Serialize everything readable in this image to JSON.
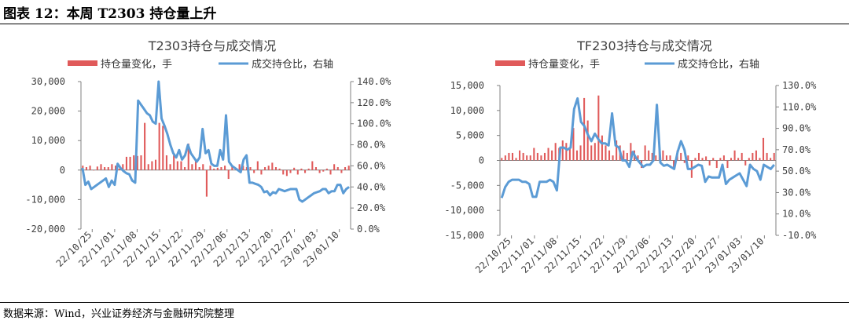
{
  "figure": {
    "title": "图表 12：本周 T2303 持仓量上升",
    "source": "数据来源：Wind，兴业证券经济与金融研究院整理"
  },
  "colors": {
    "bar": "#e05a5a",
    "line": "#5b9bd5",
    "axis": "#808080"
  },
  "chart_data": [
    {
      "type": "bar+line",
      "title": "T2303持仓与成交情况",
      "legend": [
        "持仓量变化，手",
        "成交持仓比，右轴"
      ],
      "left_axis": {
        "ylim": [
          -20000,
          30000
        ],
        "ticks": [
          -20000,
          -10000,
          0,
          10000,
          20000,
          30000
        ],
        "tick_labels": [
          "-20,000",
          "-10,000",
          "0",
          "10,000",
          "20,000",
          "30,000"
        ]
      },
      "right_axis": {
        "ylim": [
          0,
          140
        ],
        "ticks": [
          0,
          20,
          40,
          60,
          80,
          100,
          120,
          140
        ],
        "tick_labels": [
          "0.0%",
          "20.0%",
          "40.0%",
          "60.0%",
          "80.0%",
          "100.0%",
          "120.0%",
          "140.0%"
        ]
      },
      "x_tick_labels": [
        "22/10/25",
        "22/11/01",
        "22/11/08",
        "22/11/15",
        "22/11/22",
        "22/11/29",
        "22/12/06",
        "22/12/13",
        "22/12/20",
        "22/12/27",
        "23/01/03",
        "23/01/10"
      ],
      "series": [
        {
          "name": "持仓量变化，手",
          "kind": "bar",
          "values": [
            1500,
            1000,
            1500,
            0,
            1200,
            2000,
            1000,
            1000,
            2000,
            1500,
            500,
            2000,
            4500,
            4500,
            5000,
            4800,
            5000,
            16000,
            2000,
            3000,
            3500,
            16000,
            15000,
            5000,
            2000,
            5000,
            3000,
            3000,
            1000,
            9000,
            2000,
            3000,
            1000,
            2000,
            -9000,
            1500,
            500,
            800,
            1000,
            1500,
            -3000,
            1500,
            500,
            2000,
            1500,
            1000,
            1000,
            -1000,
            3000,
            -1500,
            1000,
            1500,
            2500,
            1000,
            500,
            -1500,
            -2000,
            -1000,
            800,
            -1500,
            500,
            -1000,
            500,
            3000,
            1000,
            -1000,
            -500,
            500,
            -1500,
            2000,
            1000,
            -1000,
            1000,
            1500
          ],
          "values_positions": "x values are day indices from 0 to 73, evenly spread over the 12 weekly tick labels"
        },
        {
          "name": "成交持仓比，右轴",
          "kind": "line",
          "values": [
            58,
            42,
            45,
            38,
            40,
            42,
            44,
            46,
            48,
            40,
            46,
            42,
            62,
            58,
            55,
            53,
            52,
            46,
            44,
            122,
            118,
            114,
            110,
            108,
            102,
            100,
            140,
            105,
            98,
            90,
            80,
            72,
            68,
            75,
            66,
            70,
            80,
            72,
            68,
            64,
            68,
            95,
            72,
            75,
            62,
            60,
            60,
            75,
            66,
            108,
            64,
            60,
            58,
            56,
            54,
            66,
            70,
            44,
            44,
            43,
            42,
            40,
            35,
            36,
            32,
            35,
            34,
            38,
            37,
            36,
            37,
            38,
            38,
            38,
            28,
            26,
            28,
            30,
            32,
            34,
            35,
            36,
            38,
            38,
            34,
            36,
            36,
            42,
            42,
            34,
            38,
            40
          ]
        }
      ]
    },
    {
      "type": "bar+line",
      "title": "TF2303持仓与成交情况",
      "legend": [
        "持仓量变化，手",
        "成交持仓比，右轴"
      ],
      "left_axis": {
        "ylim": [
          -15000,
          15000
        ],
        "ticks": [
          -15000,
          -10000,
          -5000,
          0,
          5000,
          10000,
          15000
        ],
        "tick_labels": [
          "-15,000",
          "-10,000",
          "-5,000",
          "0",
          "5,000",
          "10,000",
          "15,000"
        ]
      },
      "right_axis": {
        "ylim": [
          -10,
          130
        ],
        "ticks": [
          -10,
          10,
          30,
          50,
          70,
          90,
          110,
          130
        ],
        "tick_labels": [
          "-10.0%",
          "10.0%",
          "30.0%",
          "50.0%",
          "70.0%",
          "90.0%",
          "110.0%",
          "130.0%"
        ]
      },
      "x_tick_labels": [
        "22/10/25",
        "22/11/01",
        "22/11/08",
        "22/11/15",
        "22/11/22",
        "22/11/29",
        "22/12/06",
        "22/12/13",
        "22/12/20",
        "22/12/27",
        "23/01/03",
        "23/01/10"
      ],
      "series": [
        {
          "name": "持仓量变化，手",
          "kind": "bar",
          "values": [
            500,
            1000,
            1500,
            1500,
            500,
            2000,
            1500,
            1000,
            1000,
            2500,
            1500,
            1000,
            1500,
            2500,
            2000,
            3500,
            2500,
            4000,
            3500,
            2500,
            6500,
            2000,
            3000,
            12500,
            8000,
            3000,
            3500,
            13000,
            5000,
            3000,
            2000,
            1000,
            4000,
            3000,
            2000,
            1500,
            3500,
            2000,
            1000,
            -1500,
            3000,
            2000,
            1500,
            1000,
            2500,
            2000,
            1000,
            1000,
            -1500,
            2000,
            1500,
            -500,
            1000,
            -3500,
            500,
            1500,
            500,
            800,
            -1000,
            500,
            -1500,
            500,
            1000,
            -1500,
            500,
            2000,
            500,
            1500,
            -1000,
            500,
            1500,
            2000,
            500,
            4500,
            1500,
            500,
            1500
          ],
          "values_positions": "x values are day indices from 0 to 76, evenly spread over the 12 weekly tick labels"
        },
        {
          "name": "成交持仓比，右轴",
          "kind": "line",
          "values": [
            25,
            35,
            40,
            42,
            42,
            42,
            40,
            40,
            38,
            26,
            26,
            40,
            40,
            40,
            42,
            40,
            32,
            72,
            72,
            70,
            72,
            108,
            118,
            96,
            92,
            84,
            78,
            85,
            80,
            76,
            76,
            74,
            104,
            74,
            72,
            60,
            60,
            54,
            68,
            62,
            58,
            54,
            56,
            56,
            60,
            112,
            58,
            55,
            56,
            54,
            52,
            68,
            78,
            70,
            52,
            52,
            54,
            56,
            55,
            40,
            45,
            44,
            44,
            44,
            56,
            38,
            42,
            44,
            46,
            48,
            42,
            36,
            56,
            52,
            50,
            42,
            56,
            54,
            52,
            56
          ]
        }
      ]
    }
  ]
}
